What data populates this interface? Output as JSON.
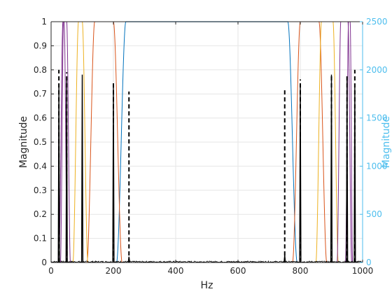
{
  "chart_data": {
    "type": "line",
    "xlabel": "Hz",
    "ylabel_left": "Magnitude",
    "ylabel_right": "Magnitude",
    "xlim": [
      0,
      1000
    ],
    "ylim_left": [
      0,
      1
    ],
    "ylim_right": [
      0,
      2500
    ],
    "x_ticks": [
      0,
      200,
      400,
      600,
      800,
      1000
    ],
    "y_left_ticks": [
      0,
      0.1,
      0.2,
      0.3,
      0.4,
      0.5,
      0.6,
      0.7,
      0.8,
      0.9,
      1
    ],
    "y_right_ticks": [
      0,
      500,
      1000,
      1500,
      2000,
      2500
    ],
    "grid": true,
    "colors": {
      "axes": "#262626",
      "right_axis": "#4DBEEE",
      "grid": "#e6e6e6",
      "filter_blue": "#0072BD",
      "filter_red": "#D95319",
      "filter_yellow": "#EDB120",
      "filter_purple": "#7E2F8E",
      "dashed": "#000000",
      "spectrum": "#000000"
    },
    "filters": [
      {
        "color_key": "filter_blue",
        "edges": [
          [
            210,
            240,
            "up"
          ],
          [
            760,
            790,
            "down"
          ]
        ]
      },
      {
        "color_key": "filter_red",
        "edges": [
          [
            115,
            140,
            "up"
          ],
          [
            200,
            228,
            "down"
          ],
          [
            775,
            800,
            "up"
          ],
          [
            860,
            885,
            "down"
          ]
        ]
      },
      {
        "color_key": "filter_yellow",
        "edges": [
          [
            70,
            88,
            "up"
          ],
          [
            100,
            118,
            "down"
          ],
          [
            850,
            868,
            "up"
          ],
          [
            905,
            922,
            "down"
          ]
        ]
      },
      {
        "color_key": "filter_purple",
        "edges": [
          [
            25,
            38,
            "up"
          ],
          [
            50,
            62,
            "down"
          ],
          [
            918,
            930,
            "up"
          ],
          [
            953,
            965,
            "down"
          ]
        ]
      },
      {
        "color_key": "filter_purple",
        "edges": [
          [
            30,
            40,
            "up"
          ],
          [
            42,
            52,
            "down"
          ],
          [
            945,
            955,
            "up"
          ],
          [
            960,
            968,
            "down"
          ]
        ]
      }
    ],
    "dashed_lines": [
      {
        "x": 25,
        "y": 0.8
      },
      {
        "x": 50,
        "y": 0.79
      },
      {
        "x": 200,
        "y": 0.75
      },
      {
        "x": 250,
        "y": 0.71
      },
      {
        "x": 750,
        "y": 0.72
      },
      {
        "x": 800,
        "y": 0.76
      },
      {
        "x": 900,
        "y": 0.78
      },
      {
        "x": 950,
        "y": 0.78
      },
      {
        "x": 975,
        "y": 0.8
      }
    ],
    "spectrum_peaks": [
      {
        "x": 25,
        "y": 1850
      },
      {
        "x": 50,
        "y": 1900
      },
      {
        "x": 100,
        "y": 1950
      },
      {
        "x": 200,
        "y": 1850
      },
      {
        "x": 250,
        "y": 60
      },
      {
        "x": 750,
        "y": 80
      },
      {
        "x": 800,
        "y": 1850
      },
      {
        "x": 900,
        "y": 1950
      },
      {
        "x": 950,
        "y": 1900
      },
      {
        "x": 975,
        "y": 1850
      }
    ],
    "spectrum_noise_level": 15
  }
}
